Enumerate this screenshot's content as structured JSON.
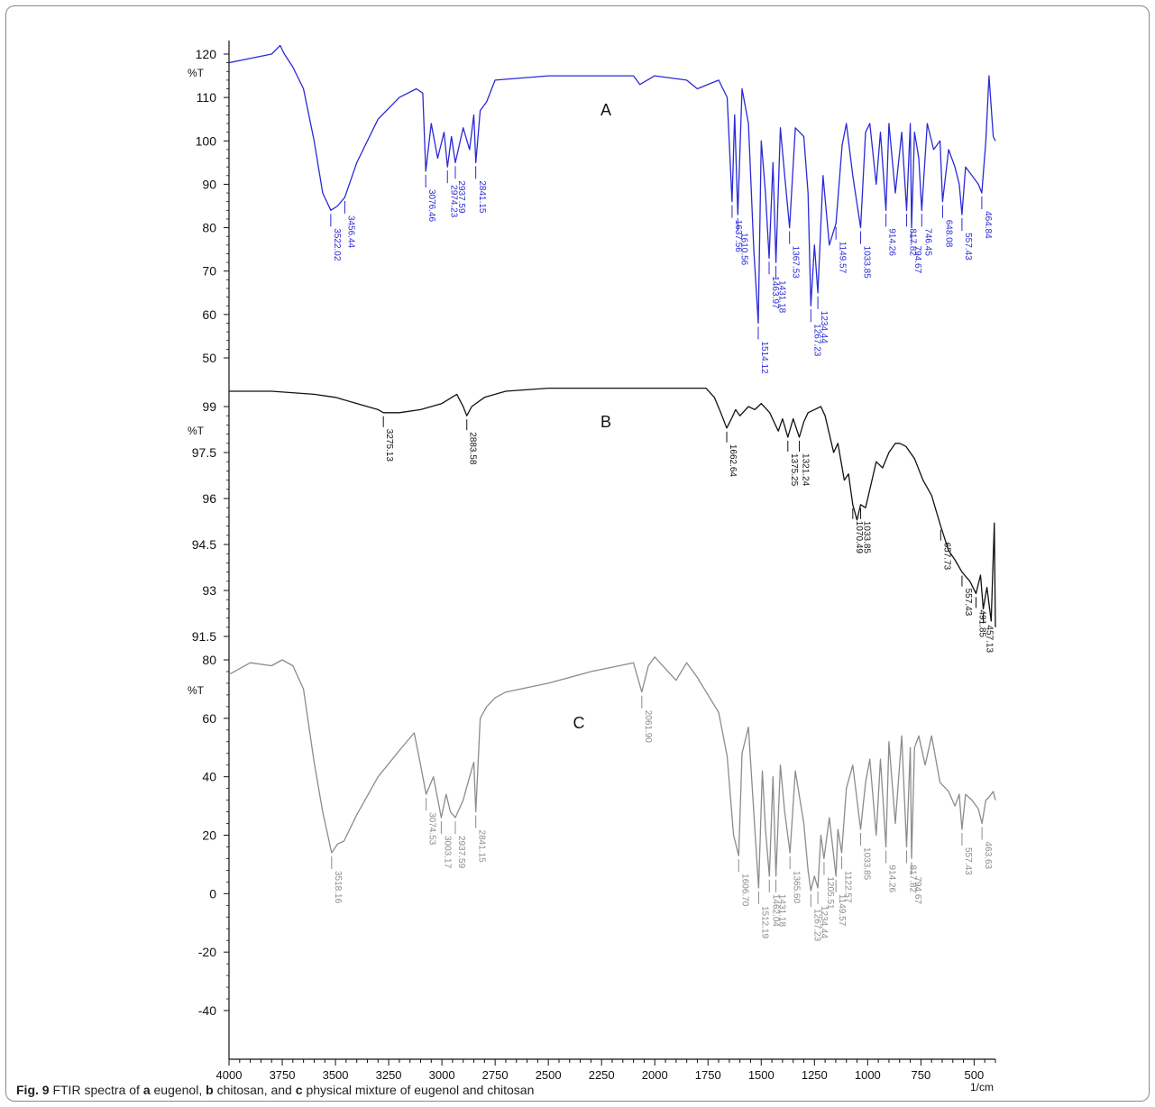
{
  "caption": {
    "fig_label": "Fig. 9",
    "t1": "FTIR spectra of",
    "a": "a",
    "t2": "eugenol,",
    "b": "b",
    "t3": "chitosan, and",
    "c": "c",
    "t4": "physical mixture of eugenol and chitosan"
  },
  "chart_data": {
    "type": "line",
    "x_unit_label": "1/cm",
    "x_ticks": [
      4000,
      3750,
      3500,
      3250,
      3000,
      2750,
      2500,
      2250,
      2000,
      1750,
      1500,
      1250,
      1000,
      750,
      500
    ],
    "panels": [
      {
        "panel_label": "A",
        "ylabel": "%T",
        "color": "#2a2ad6",
        "y_ticks": [
          120,
          110,
          100,
          90,
          80,
          70,
          60,
          50
        ],
        "x": [
          4000,
          3900,
          3800,
          3760,
          3740,
          3700,
          3650,
          3600,
          3560,
          3522,
          3490,
          3456,
          3400,
          3300,
          3200,
          3120,
          3090,
          3076,
          3050,
          3020,
          2990,
          2974,
          2955,
          2937,
          2900,
          2870,
          2850,
          2841,
          2820,
          2790,
          2750,
          2500,
          2300,
          2100,
          2070,
          2000,
          1850,
          1800,
          1700,
          1660,
          1637,
          1625,
          1610,
          1590,
          1560,
          1535,
          1514,
          1500,
          1480,
          1463,
          1445,
          1431,
          1410,
          1390,
          1367,
          1340,
          1300,
          1280,
          1267,
          1250,
          1234,
          1210,
          1180,
          1149,
          1120,
          1100,
          1070,
          1033,
          1010,
          990,
          960,
          940,
          914,
          900,
          870,
          840,
          817,
          800,
          794,
          780,
          760,
          746,
          720,
          690,
          660,
          648,
          620,
          590,
          570,
          557,
          540,
          510,
          480,
          464,
          445,
          430,
          410,
          400
        ],
        "y": [
          118,
          119,
          120,
          122,
          120,
          117,
          112,
          100,
          88,
          84,
          85,
          87,
          95,
          105,
          110,
          112,
          111,
          93,
          104,
          96,
          102,
          94,
          101,
          95,
          103,
          98,
          106,
          95,
          107,
          109,
          114,
          115,
          115,
          115,
          113,
          115,
          114,
          112,
          114,
          110,
          86,
          106,
          83,
          112,
          104,
          75,
          58,
          100,
          88,
          73,
          95,
          72,
          103,
          92,
          80,
          103,
          101,
          88,
          62,
          76,
          65,
          92,
          76,
          81,
          99,
          104,
          92,
          80,
          102,
          104,
          90,
          102,
          84,
          104,
          88,
          102,
          84,
          104,
          80,
          102,
          96,
          84,
          104,
          98,
          100,
          86,
          98,
          94,
          90,
          83,
          94,
          92,
          90,
          88,
          100,
          115,
          101,
          100
        ],
        "peak_labels": [
          {
            "x": 3522,
            "text": "3522.02"
          },
          {
            "x": 3456,
            "text": "3456.44"
          },
          {
            "x": 3076,
            "text": "3076.46"
          },
          {
            "x": 2974,
            "text": "2974.23"
          },
          {
            "x": 2937,
            "text": "2937.59"
          },
          {
            "x": 2841,
            "text": "2841.15"
          },
          {
            "x": 1637,
            "text": "1637.56"
          },
          {
            "x": 1610,
            "text": "1610.56"
          },
          {
            "x": 1514,
            "text": "1514.12"
          },
          {
            "x": 1463,
            "text": "1463.97"
          },
          {
            "x": 1431,
            "text": "1431.18"
          },
          {
            "x": 1367,
            "text": "1367.53"
          },
          {
            "x": 1267,
            "text": "1267.23"
          },
          {
            "x": 1234,
            "text": "1234.44"
          },
          {
            "x": 1149,
            "text": "1149.57"
          },
          {
            "x": 1033,
            "text": "1033.85"
          },
          {
            "x": 914,
            "text": "914.26"
          },
          {
            "x": 817,
            "text": "817.82"
          },
          {
            "x": 794,
            "text": "794.67"
          },
          {
            "x": 746,
            "text": "746.45"
          },
          {
            "x": 648,
            "text": "648.08"
          },
          {
            "x": 557,
            "text": "557.43"
          },
          {
            "x": 464,
            "text": "464.84"
          }
        ]
      },
      {
        "panel_label": "B",
        "ylabel": "%T",
        "color": "#111111",
        "y_ticks": [
          99,
          97.5,
          96,
          94.5,
          93,
          91.5
        ],
        "x": [
          4000,
          3800,
          3600,
          3500,
          3400,
          3300,
          3275,
          3200,
          3100,
          3000,
          2930,
          2900,
          2883,
          2860,
          2800,
          2700,
          2500,
          2300,
          2100,
          1900,
          1760,
          1720,
          1690,
          1662,
          1640,
          1620,
          1600,
          1560,
          1530,
          1500,
          1460,
          1440,
          1420,
          1400,
          1375,
          1350,
          1321,
          1300,
          1280,
          1250,
          1220,
          1200,
          1160,
          1140,
          1110,
          1090,
          1070,
          1050,
          1033,
          1010,
          980,
          960,
          930,
          900,
          870,
          850,
          820,
          780,
          740,
          700,
          657,
          620,
          590,
          557,
          520,
          491,
          470,
          457,
          440,
          420,
          405,
          400
        ],
        "y": [
          99.5,
          99.5,
          99.4,
          99.3,
          99.1,
          98.9,
          98.8,
          98.8,
          98.9,
          99.1,
          99.4,
          99.0,
          98.7,
          99.0,
          99.3,
          99.5,
          99.6,
          99.6,
          99.6,
          99.6,
          99.6,
          99.3,
          98.8,
          98.3,
          98.6,
          98.9,
          98.7,
          99.0,
          98.9,
          99.1,
          98.8,
          98.5,
          98.2,
          98.6,
          98.0,
          98.6,
          98.0,
          98.5,
          98.8,
          98.9,
          99.0,
          98.7,
          97.5,
          97.8,
          96.6,
          96.8,
          95.8,
          95.3,
          95.8,
          95.7,
          96.6,
          97.2,
          97.0,
          97.5,
          97.8,
          97.8,
          97.7,
          97.3,
          96.6,
          96.1,
          95.1,
          94.3,
          94.0,
          93.6,
          93.3,
          92.9,
          93.5,
          92.4,
          93.1,
          92.0,
          95.2,
          91.8
        ],
        "peak_labels": [
          {
            "x": 3275,
            "text": "3275.13"
          },
          {
            "x": 2883,
            "text": "2883.58"
          },
          {
            "x": 1662,
            "text": "1662.64"
          },
          {
            "x": 1375,
            "text": "1375.25"
          },
          {
            "x": 1321,
            "text": "1321.24"
          },
          {
            "x": 1070,
            "text": "1070.49"
          },
          {
            "x": 1033,
            "text": "1033.85"
          },
          {
            "x": 657,
            "text": "657.73"
          },
          {
            "x": 557,
            "text": "557.43"
          },
          {
            "x": 491,
            "text": "491.85"
          },
          {
            "x": 457,
            "text": "457.13"
          }
        ]
      },
      {
        "panel_label": "C",
        "ylabel": "%T",
        "color": "#8c8c8c",
        "y_ticks": [
          80,
          60,
          40,
          20,
          0,
          -20,
          -40
        ],
        "x": [
          4000,
          3900,
          3800,
          3750,
          3700,
          3650,
          3600,
          3560,
          3518,
          3490,
          3460,
          3400,
          3300,
          3200,
          3130,
          3100,
          3074,
          3040,
          3003,
          2980,
          2960,
          2937,
          2900,
          2870,
          2850,
          2841,
          2820,
          2790,
          2750,
          2700,
          2500,
          2300,
          2100,
          2061,
          2030,
          2000,
          1900,
          1850,
          1800,
          1700,
          1660,
          1630,
          1606,
          1590,
          1560,
          1530,
          1512,
          1495,
          1480,
          1462,
          1445,
          1431,
          1410,
          1390,
          1365,
          1340,
          1300,
          1280,
          1267,
          1250,
          1234,
          1220,
          1205,
          1180,
          1149,
          1140,
          1122,
          1100,
          1070,
          1033,
          1010,
          990,
          960,
          940,
          914,
          900,
          870,
          840,
          817,
          800,
          794,
          780,
          760,
          730,
          700,
          660,
          620,
          590,
          570,
          557,
          540,
          510,
          480,
          463,
          445,
          430,
          410,
          400
        ],
        "y": [
          75,
          79,
          78,
          80,
          78,
          70,
          45,
          28,
          14,
          17,
          18,
          27,
          40,
          49,
          55,
          44,
          34,
          40,
          26,
          34,
          28,
          26,
          32,
          40,
          45,
          28,
          60,
          64,
          67,
          69,
          72,
          76,
          79,
          69,
          78,
          81,
          73,
          79,
          74,
          62,
          47,
          20,
          13,
          48,
          57,
          22,
          2,
          42,
          22,
          6,
          40,
          6,
          44,
          28,
          14,
          42,
          24,
          8,
          1,
          6,
          2,
          20,
          12,
          26,
          6,
          22,
          14,
          36,
          44,
          22,
          38,
          46,
          20,
          46,
          16,
          52,
          24,
          54,
          16,
          50,
          12,
          50,
          54,
          44,
          54,
          38,
          35,
          30,
          34,
          22,
          34,
          32,
          29,
          24,
          32,
          33,
          35,
          32
        ],
        "peak_labels": [
          {
            "x": 3518,
            "text": "3518.16"
          },
          {
            "x": 3074,
            "text": "3074.53"
          },
          {
            "x": 3003,
            "text": "3003.17"
          },
          {
            "x": 2937,
            "text": "2937.59"
          },
          {
            "x": 2841,
            "text": "2841.15"
          },
          {
            "x": 2061,
            "text": "2061.90"
          },
          {
            "x": 1606,
            "text": "1606.70"
          },
          {
            "x": 1512,
            "text": "1512.19"
          },
          {
            "x": 1462,
            "text": "1462.04"
          },
          {
            "x": 1431,
            "text": "1431.18"
          },
          {
            "x": 1365,
            "text": "1365.60"
          },
          {
            "x": 1267,
            "text": "1267.23"
          },
          {
            "x": 1234,
            "text": "1234.44"
          },
          {
            "x": 1205,
            "text": "1205.51"
          },
          {
            "x": 1149,
            "text": "1149.57"
          },
          {
            "x": 1122,
            "text": "1122.57"
          },
          {
            "x": 1033,
            "text": "1033.85"
          },
          {
            "x": 914,
            "text": "914.26"
          },
          {
            "x": 817,
            "text": "817.82"
          },
          {
            "x": 794,
            "text": "794.67"
          },
          {
            "x": 557,
            "text": "557.43"
          },
          {
            "x": 463,
            "text": "463.63"
          }
        ]
      }
    ]
  }
}
